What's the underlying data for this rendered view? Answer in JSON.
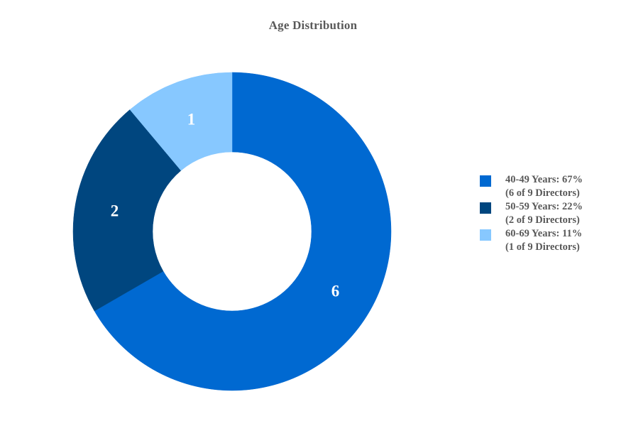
{
  "chart_data": {
    "type": "pie",
    "variant": "donut",
    "title": "Age Distribution",
    "total": 9,
    "series": [
      {
        "category": "40-49 Years",
        "value": 6,
        "color": "#0069D1",
        "legend_line1": "40-49 Years: 67%",
        "legend_line2": "(6 of 9 Directors)",
        "label": "6"
      },
      {
        "category": "50-59 Years",
        "value": 2,
        "color": "#00467F",
        "legend_line1": "50-59 Years: 22%",
        "legend_line2": "(2 of 9 Directors)",
        "label": "2"
      },
      {
        "category": "60-69 Years",
        "value": 1,
        "color": "#87C8FF",
        "legend_line1": "60-69 Years: 11%",
        "legend_line2": "(1 of 9 Directors)",
        "label": "1"
      }
    ],
    "legend_position": "right"
  }
}
